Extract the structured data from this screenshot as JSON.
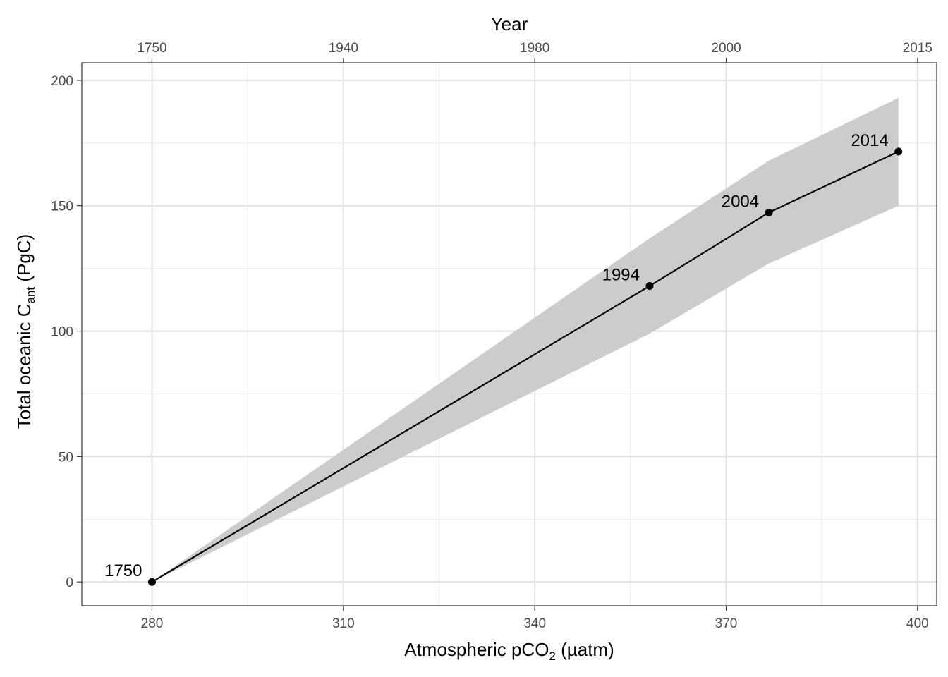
{
  "chart_data": {
    "type": "line",
    "x_axis": {
      "label_main": "Atmospheric pCO",
      "label_sub": "2",
      "label_tail": " (µatm)",
      "ticks": [
        280,
        310,
        340,
        370,
        400
      ],
      "tick_labels": [
        "280",
        "310",
        "340",
        "370",
        "400"
      ],
      "range": [
        269,
        403
      ]
    },
    "top_axis": {
      "label": "Year",
      "ticks": [
        280,
        310,
        340,
        370,
        400
      ],
      "tick_labels": [
        "1750",
        "1940",
        "1980",
        "2000",
        "2015"
      ]
    },
    "y_axis": {
      "label_main": "Total oceanic C",
      "label_sub": "ant",
      "label_tail": " (PgC)",
      "ticks": [
        0,
        50,
        100,
        150,
        200
      ],
      "tick_labels": [
        "0",
        "50",
        "100",
        "150",
        "200"
      ],
      "range": [
        -9.5,
        207
      ]
    },
    "grid": true,
    "minor_grid": true,
    "series": [
      {
        "points": [
          {
            "x": 280,
            "y": 0,
            "year": "1750"
          },
          {
            "x": 358,
            "y": 118,
            "year": "1994"
          },
          {
            "x": 376.7,
            "y": 147.3,
            "year": "2004"
          },
          {
            "x": 397,
            "y": 171.6,
            "year": "2014"
          }
        ],
        "line_color": "#000000"
      }
    ],
    "uncertainty_band": {
      "fill": "#cccccc",
      "x": [
        280,
        358,
        376.7,
        397
      ],
      "lower": [
        0,
        99,
        127,
        150
      ],
      "upper": [
        0,
        137,
        168,
        193
      ]
    }
  }
}
